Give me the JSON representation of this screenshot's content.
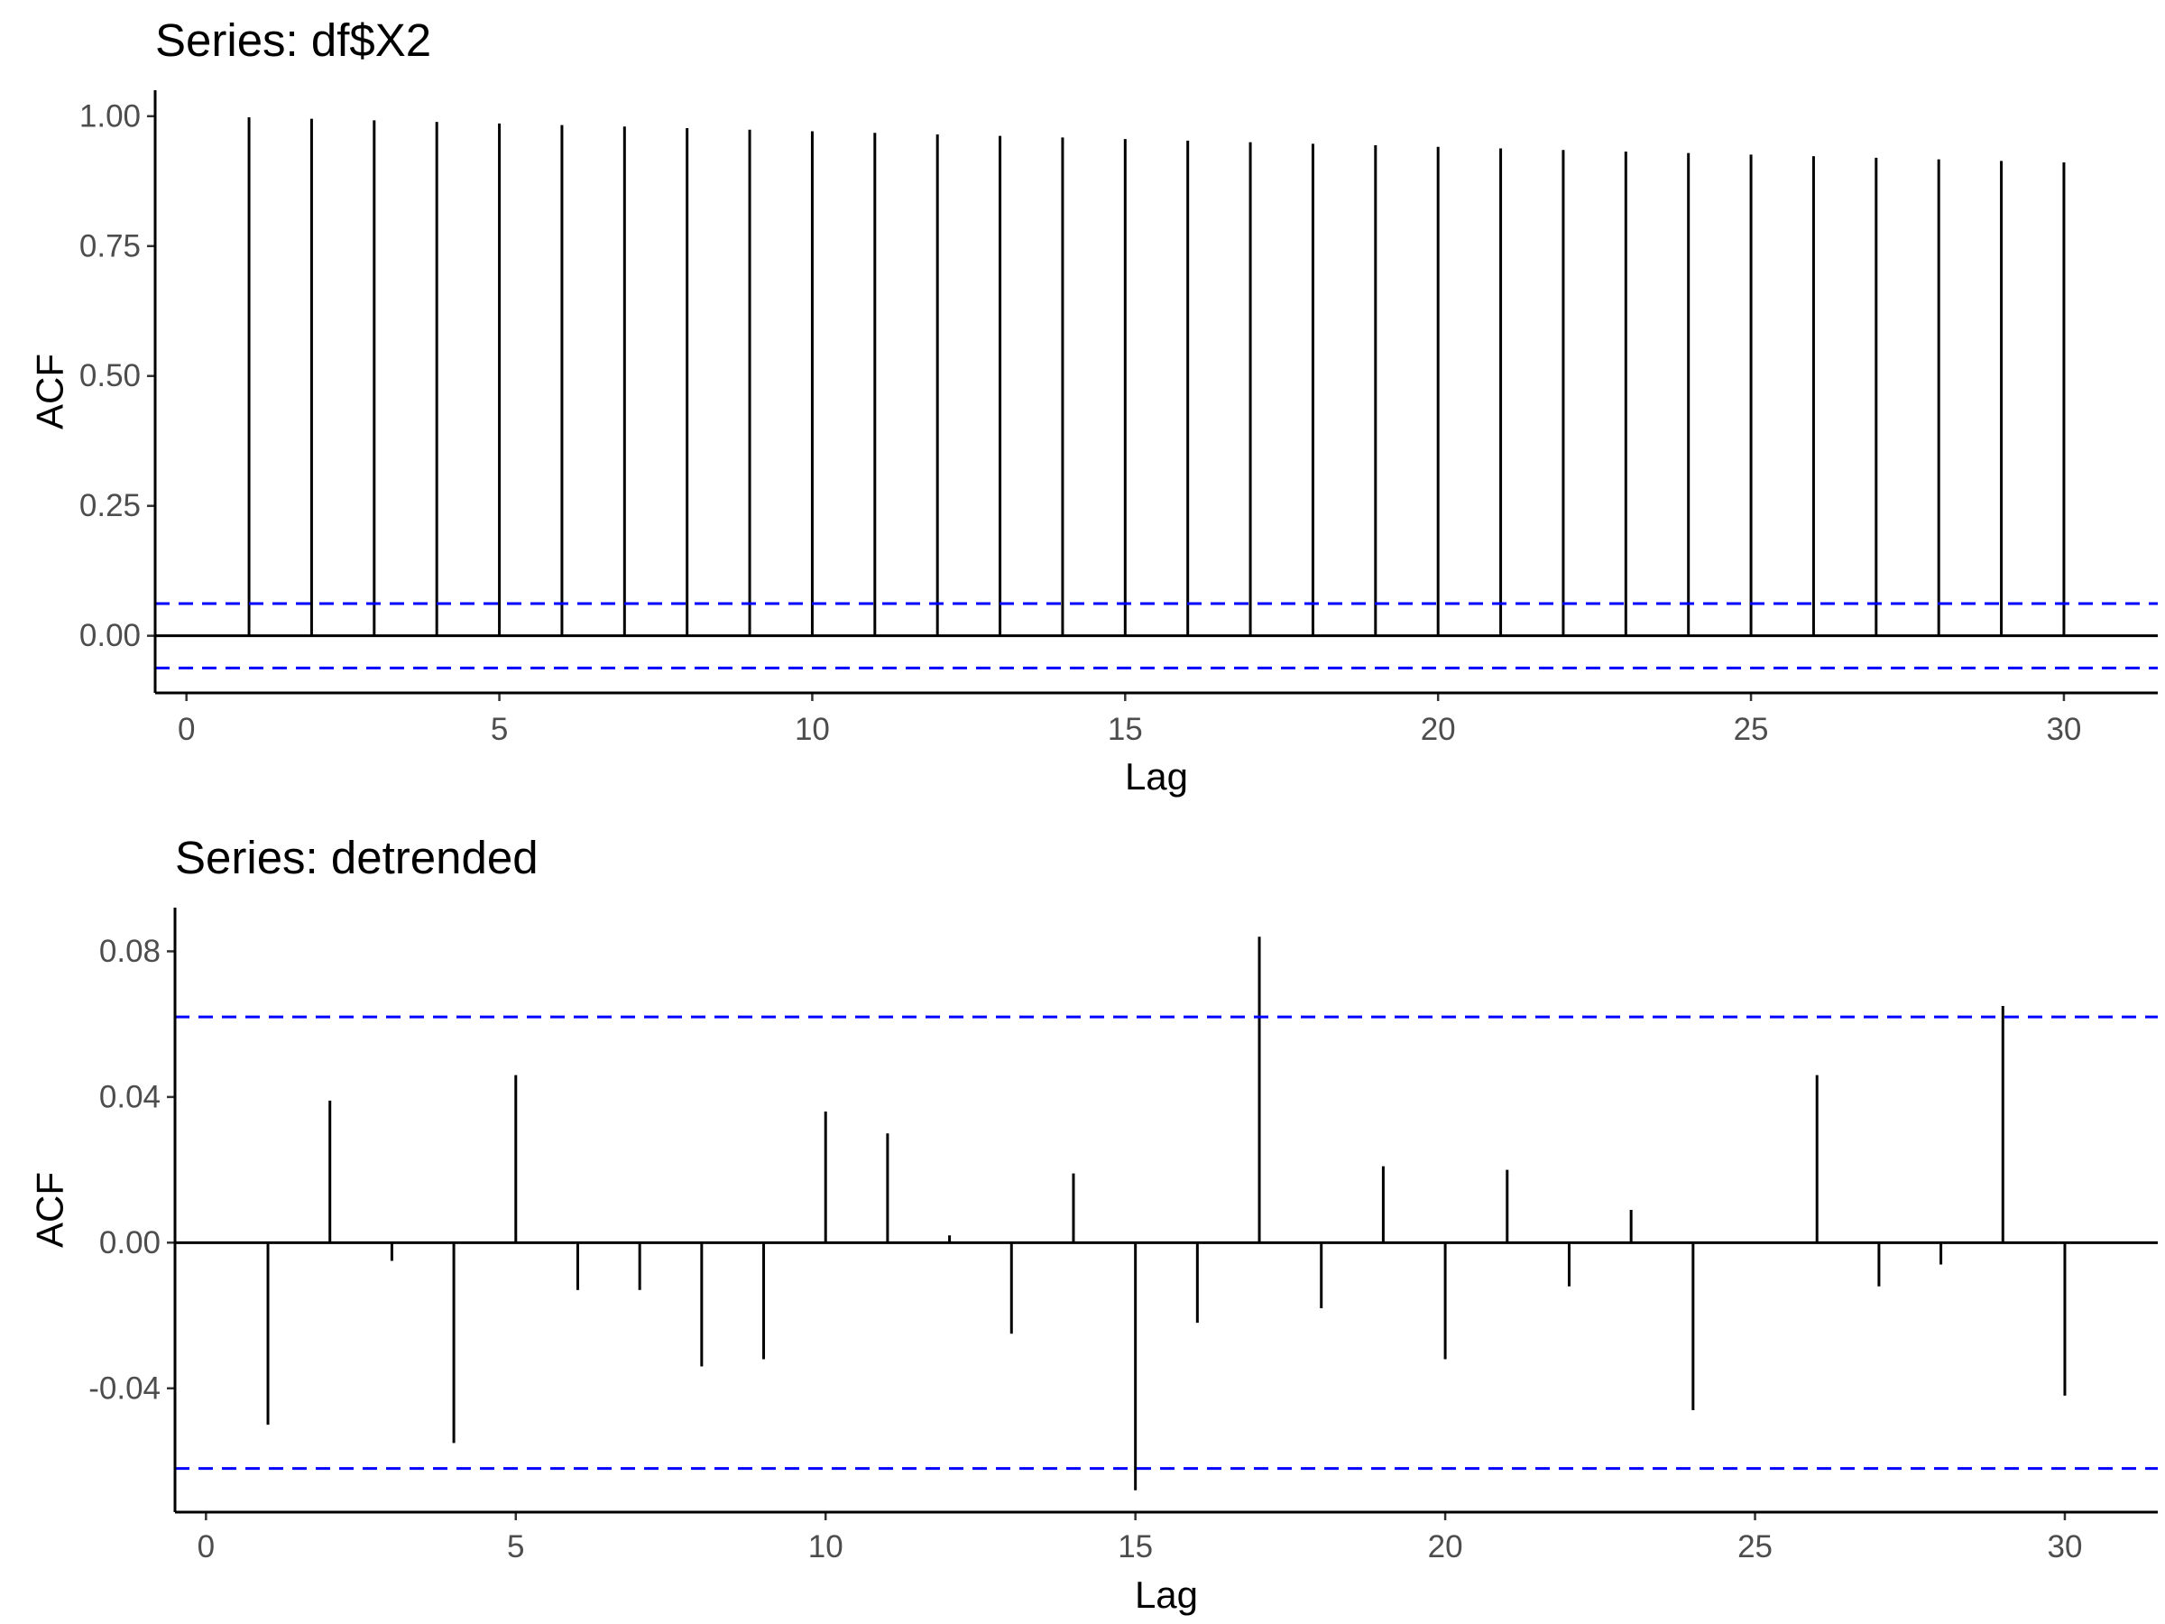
{
  "chart_data": [
    {
      "type": "bar",
      "subtype": "acf-stem",
      "title": "Series: df$X2",
      "xlabel": "Lag",
      "ylabel": "ACF",
      "xlim": [
        -0.5,
        31.5
      ],
      "ylim": [
        -0.11,
        1.05
      ],
      "x_ticks": [
        "0",
        "5",
        "10",
        "15",
        "20",
        "25",
        "30"
      ],
      "y_ticks": [
        "0.00",
        "0.25",
        "0.50",
        "0.75",
        "1.00"
      ],
      "confidence_bound": 0.062,
      "confidence_color": "#0000ff",
      "stem_color": "#000000",
      "grid": false,
      "lags": [
        1,
        2,
        3,
        4,
        5,
        6,
        7,
        8,
        9,
        10,
        11,
        12,
        13,
        14,
        15,
        16,
        17,
        18,
        19,
        20,
        21,
        22,
        23,
        24,
        25,
        26,
        27,
        28,
        29,
        30
      ],
      "values": [
        0.998,
        0.995,
        0.992,
        0.989,
        0.986,
        0.983,
        0.98,
        0.977,
        0.974,
        0.971,
        0.968,
        0.965,
        0.962,
        0.959,
        0.956,
        0.953,
        0.95,
        0.947,
        0.944,
        0.941,
        0.938,
        0.935,
        0.932,
        0.929,
        0.926,
        0.923,
        0.92,
        0.917,
        0.914,
        0.911
      ]
    },
    {
      "type": "bar",
      "subtype": "acf-stem",
      "title": "Series: detrended",
      "xlabel": "Lag",
      "ylabel": "ACF",
      "xlim": [
        -0.5,
        31.5
      ],
      "ylim": [
        -0.074,
        0.092
      ],
      "x_ticks": [
        "0",
        "5",
        "10",
        "15",
        "20",
        "25",
        "30"
      ],
      "y_ticks": [
        "-0.04",
        "0.00",
        "0.04",
        "0.08"
      ],
      "confidence_bound": 0.062,
      "confidence_color": "#0000ff",
      "stem_color": "#000000",
      "grid": false,
      "lags": [
        1,
        2,
        3,
        4,
        5,
        6,
        7,
        8,
        9,
        10,
        11,
        12,
        13,
        14,
        15,
        16,
        17,
        18,
        19,
        20,
        21,
        22,
        23,
        24,
        25,
        26,
        27,
        28,
        29,
        30
      ],
      "values": [
        -0.05,
        0.039,
        -0.005,
        -0.055,
        0.046,
        -0.013,
        -0.013,
        -0.034,
        -0.032,
        0.036,
        0.03,
        0.002,
        -0.025,
        0.019,
        -0.068,
        -0.022,
        0.084,
        -0.018,
        0.021,
        -0.032,
        0.02,
        -0.012,
        0.009,
        -0.046,
        0.0,
        0.046,
        -0.012,
        -0.006,
        0.065,
        -0.042
      ]
    }
  ]
}
